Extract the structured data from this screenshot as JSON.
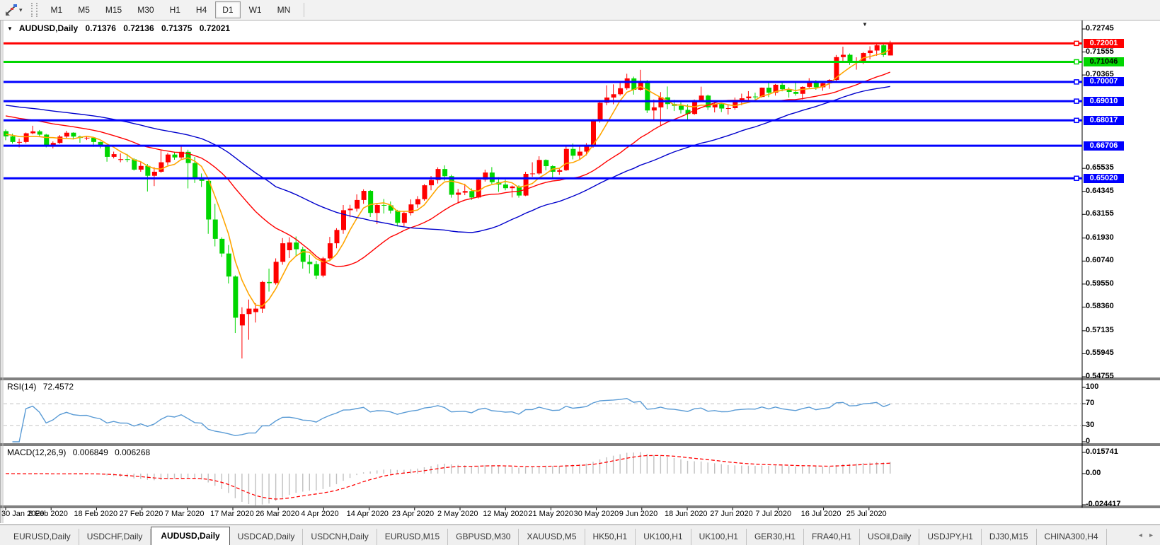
{
  "toolbar": {
    "timeframes": [
      "M1",
      "M5",
      "M15",
      "M30",
      "H1",
      "H4",
      "D1",
      "W1",
      "MN"
    ],
    "active_timeframe": "D1"
  },
  "icons": {
    "caret_down": "▾",
    "collapse_triangle": "▼",
    "shift_triangle": "▼",
    "tab_prev": "◂",
    "tab_next": "▸"
  },
  "header": {
    "symbol": "AUDUSD,Daily",
    "open": "0.71376",
    "high": "0.72136",
    "low": "0.71375",
    "close": "0.72021"
  },
  "chart_data": {
    "type": "candlestick",
    "symbol": "AUDUSD",
    "timeframe": "Daily",
    "colors": {
      "bull": "#ff0000",
      "bear": "#00d600",
      "ma_fast": "#ffa500",
      "ma_med": "#ff0000",
      "ma_slow": "#0000cc",
      "rsi_line": "#5a9bd5",
      "macd_hist": "#c0c0c0",
      "macd_signal": "#ff0000"
    },
    "price_axis": {
      "top": 0.72745,
      "bottom": 0.54755,
      "visible_ticks": [
        0.72745,
        0.71555,
        0.70365,
        0.65535,
        0.64345,
        0.63155,
        0.6193,
        0.6074,
        0.5955,
        0.5836,
        0.57135,
        0.55945,
        0.54755
      ]
    },
    "hlines": [
      {
        "price": 0.72001,
        "label": "0.72001",
        "color": "#ff0000",
        "text_color": "#ffffff",
        "marker": true
      },
      {
        "price": 0.71046,
        "label": "0.71046",
        "color": "#00d600",
        "text_color": "#000000",
        "marker": true
      },
      {
        "price": 0.70007,
        "label": "0.70007",
        "color": "#0000ff",
        "text_color": "#ffffff",
        "marker": true
      },
      {
        "price": 0.6901,
        "label": "0.69010",
        "color": "#0000ff",
        "text_color": "#ffffff",
        "marker": true
      },
      {
        "price": 0.68017,
        "label": "0.68017",
        "color": "#0000ff",
        "text_color": "#ffffff",
        "marker": true
      },
      {
        "price": 0.66706,
        "label": "0.66706",
        "color": "#0000ff",
        "text_color": "#ffffff",
        "marker": false
      },
      {
        "price": 0.6502,
        "label": "0.65020",
        "color": "#0000ff",
        "text_color": "#ffffff",
        "marker": true
      }
    ],
    "date_labels": [
      "30 Jan 2020",
      "8 Feb 2020",
      "18 Feb 2020",
      "27 Feb 2020",
      "7 Mar 2020",
      "17 Mar 2020",
      "26 Mar 2020",
      "4 Apr 2020",
      "14 Apr 2020",
      "23 Apr 2020",
      "2 May 2020",
      "12 May 2020",
      "21 May 2020",
      "30 May 2020",
      "9 Jun 2020",
      "18 Jun 2020",
      "27 Jun 2020",
      "7 Jul 2020",
      "16 Jul 2020",
      "25 Jul 2020"
    ],
    "candles": [
      [
        0.6746,
        0.6755,
        0.6699,
        0.6719
      ],
      [
        0.6719,
        0.6733,
        0.6682,
        0.669
      ],
      [
        0.6687,
        0.6707,
        0.6662,
        0.669
      ],
      [
        0.669,
        0.6739,
        0.6683,
        0.6735
      ],
      [
        0.6735,
        0.6774,
        0.673,
        0.6745
      ],
      [
        0.6745,
        0.6752,
        0.6717,
        0.6728
      ],
      [
        0.6728,
        0.6732,
        0.6662,
        0.667
      ],
      [
        0.6668,
        0.6693,
        0.6657,
        0.6685
      ],
      [
        0.6685,
        0.6726,
        0.668,
        0.6718
      ],
      [
        0.6718,
        0.6748,
        0.6711,
        0.6738
      ],
      [
        0.6738,
        0.674,
        0.6703,
        0.6718
      ],
      [
        0.6718,
        0.6723,
        0.6686,
        0.6711
      ],
      [
        0.6711,
        0.6721,
        0.67,
        0.6712
      ],
      [
        0.6712,
        0.6714,
        0.6665,
        0.669
      ],
      [
        0.669,
        0.6692,
        0.6657,
        0.6673
      ],
      [
        0.6673,
        0.6677,
        0.6588,
        0.6613
      ],
      [
        0.6613,
        0.664,
        0.6605,
        0.6627
      ],
      [
        0.6597,
        0.6631,
        0.6585,
        0.6601
      ],
      [
        0.6601,
        0.6628,
        0.6586,
        0.66
      ],
      [
        0.66,
        0.6606,
        0.6542,
        0.6547
      ],
      [
        0.6547,
        0.6589,
        0.6536,
        0.6566
      ],
      [
        0.6566,
        0.6576,
        0.6434,
        0.6515
      ],
      [
        0.6515,
        0.656,
        0.6462,
        0.6536
      ],
      [
        0.6536,
        0.6646,
        0.653,
        0.6585
      ],
      [
        0.6585,
        0.6633,
        0.657,
        0.6625
      ],
      [
        0.6625,
        0.6639,
        0.6598,
        0.661
      ],
      [
        0.661,
        0.6668,
        0.6602,
        0.6639
      ],
      [
        0.6639,
        0.665,
        0.645,
        0.6581
      ],
      [
        0.6581,
        0.6613,
        0.6478,
        0.65
      ],
      [
        0.65,
        0.6527,
        0.6457,
        0.6489
      ],
      [
        0.6489,
        0.649,
        0.6215,
        0.6289
      ],
      [
        0.6289,
        0.637,
        0.615,
        0.6189
      ],
      [
        0.6189,
        0.6197,
        0.6095,
        0.6113
      ],
      [
        0.6113,
        0.6157,
        0.5958,
        0.5994
      ],
      [
        0.5994,
        0.6,
        0.5702,
        0.5781
      ],
      [
        0.5741,
        0.5835,
        0.557,
        0.58
      ],
      [
        0.58,
        0.5875,
        0.5667,
        0.5828
      ],
      [
        0.581,
        0.5856,
        0.5756,
        0.5828
      ],
      [
        0.5828,
        0.5972,
        0.5805,
        0.5966
      ],
      [
        0.5966,
        0.6035,
        0.5916,
        0.596
      ],
      [
        0.596,
        0.6088,
        0.5952,
        0.607
      ],
      [
        0.607,
        0.6193,
        0.6055,
        0.6166
      ],
      [
        0.613,
        0.6197,
        0.609,
        0.617
      ],
      [
        0.617,
        0.6201,
        0.61,
        0.6135
      ],
      [
        0.6135,
        0.6148,
        0.6035,
        0.607
      ],
      [
        0.607,
        0.6105,
        0.601,
        0.6058
      ],
      [
        0.6058,
        0.6075,
        0.598,
        0.5999
      ],
      [
        0.5999,
        0.6096,
        0.599,
        0.6088
      ],
      [
        0.6088,
        0.6199,
        0.608,
        0.6166
      ],
      [
        0.6166,
        0.6244,
        0.614,
        0.6235
      ],
      [
        0.6235,
        0.6364,
        0.6215,
        0.6337
      ],
      [
        0.6337,
        0.6365,
        0.63,
        0.6345
      ],
      [
        0.6345,
        0.6419,
        0.633,
        0.639
      ],
      [
        0.639,
        0.6445,
        0.637,
        0.6437
      ],
      [
        0.6437,
        0.6441,
        0.6302,
        0.6323
      ],
      [
        0.6323,
        0.637,
        0.6265,
        0.6364
      ],
      [
        0.6364,
        0.6395,
        0.632,
        0.6362
      ],
      [
        0.6362,
        0.6382,
        0.632,
        0.6335
      ],
      [
        0.6335,
        0.6339,
        0.6253,
        0.6272
      ],
      [
        0.6272,
        0.633,
        0.6254,
        0.6323
      ],
      [
        0.6323,
        0.6393,
        0.631,
        0.6367
      ],
      [
        0.6367,
        0.641,
        0.635,
        0.6394
      ],
      [
        0.6394,
        0.6472,
        0.6386,
        0.6466
      ],
      [
        0.6466,
        0.6514,
        0.644,
        0.6493
      ],
      [
        0.6493,
        0.6559,
        0.6475,
        0.655
      ],
      [
        0.655,
        0.6569,
        0.649,
        0.6513
      ],
      [
        0.6513,
        0.6521,
        0.6402,
        0.6417
      ],
      [
        0.6417,
        0.6447,
        0.6372,
        0.6428
      ],
      [
        0.6428,
        0.6474,
        0.6415,
        0.6436
      ],
      [
        0.6436,
        0.645,
        0.639,
        0.6403
      ],
      [
        0.6403,
        0.6503,
        0.6398,
        0.6495
      ],
      [
        0.6495,
        0.6547,
        0.6485,
        0.6532
      ],
      [
        0.6532,
        0.656,
        0.6473,
        0.6482
      ],
      [
        0.6482,
        0.6508,
        0.6432,
        0.647
      ],
      [
        0.647,
        0.6495,
        0.644,
        0.6451
      ],
      [
        0.6451,
        0.6465,
        0.6403,
        0.646
      ],
      [
        0.646,
        0.6466,
        0.6402,
        0.6413
      ],
      [
        0.6413,
        0.6536,
        0.641,
        0.6525
      ],
      [
        0.6525,
        0.6585,
        0.651,
        0.6527
      ],
      [
        0.6527,
        0.6616,
        0.652,
        0.6597
      ],
      [
        0.6597,
        0.66,
        0.6543,
        0.6565
      ],
      [
        0.6565,
        0.657,
        0.6506,
        0.6536
      ],
      [
        0.6536,
        0.6554,
        0.652,
        0.6544
      ],
      [
        0.6544,
        0.6675,
        0.654,
        0.6654
      ],
      [
        0.6654,
        0.6682,
        0.66,
        0.6619
      ],
      [
        0.6619,
        0.6666,
        0.66,
        0.664
      ],
      [
        0.664,
        0.6684,
        0.662,
        0.6667
      ],
      [
        0.6667,
        0.6808,
        0.666,
        0.6798
      ],
      [
        0.6798,
        0.69,
        0.679,
        0.6893
      ],
      [
        0.6893,
        0.6983,
        0.688,
        0.692
      ],
      [
        0.692,
        0.6988,
        0.6885,
        0.6937
      ],
      [
        0.6937,
        0.7,
        0.693,
        0.6968
      ],
      [
        0.6968,
        0.7043,
        0.696,
        0.7019
      ],
      [
        0.7019,
        0.7028,
        0.6935,
        0.696
      ],
      [
        0.696,
        0.7063,
        0.6955,
        0.7
      ],
      [
        0.7,
        0.701,
        0.684,
        0.6853
      ],
      [
        0.6853,
        0.691,
        0.68,
        0.6869
      ],
      [
        0.6869,
        0.6948,
        0.6776,
        0.6921
      ],
      [
        0.6921,
        0.6977,
        0.686,
        0.6886
      ],
      [
        0.6886,
        0.6908,
        0.685,
        0.6877
      ],
      [
        0.6877,
        0.6895,
        0.6837,
        0.6856
      ],
      [
        0.6856,
        0.6885,
        0.6805,
        0.6835
      ],
      [
        0.6835,
        0.691,
        0.683,
        0.6906
      ],
      [
        0.6906,
        0.6976,
        0.69,
        0.693
      ],
      [
        0.693,
        0.6935,
        0.6856,
        0.6869
      ],
      [
        0.6869,
        0.6896,
        0.6843,
        0.6886
      ],
      [
        0.6886,
        0.689,
        0.6845,
        0.6863
      ],
      [
        0.6863,
        0.6885,
        0.6832,
        0.6865
      ],
      [
        0.6865,
        0.692,
        0.6857,
        0.6902
      ],
      [
        0.6902,
        0.694,
        0.688,
        0.6916
      ],
      [
        0.6916,
        0.6953,
        0.69,
        0.6925
      ],
      [
        0.6925,
        0.6945,
        0.691,
        0.6923
      ],
      [
        0.6923,
        0.6972,
        0.692,
        0.6971
      ],
      [
        0.6971,
        0.6998,
        0.6922,
        0.6945
      ],
      [
        0.6945,
        0.699,
        0.693,
        0.6986
      ],
      [
        0.6986,
        0.7,
        0.6952,
        0.6963
      ],
      [
        0.6963,
        0.6973,
        0.692,
        0.6949
      ],
      [
        0.6949,
        0.7,
        0.693,
        0.6939
      ],
      [
        0.6939,
        0.6978,
        0.691,
        0.6975
      ],
      [
        0.6975,
        0.702,
        0.697,
        0.7004
      ],
      [
        0.7004,
        0.701,
        0.696,
        0.6973
      ],
      [
        0.6973,
        0.7,
        0.6955,
        0.6994
      ],
      [
        0.6994,
        0.7015,
        0.6965,
        0.7011
      ],
      [
        0.7011,
        0.714,
        0.7005,
        0.7129
      ],
      [
        0.7129,
        0.7183,
        0.7108,
        0.7141
      ],
      [
        0.7141,
        0.7148,
        0.7089,
        0.7099
      ],
      [
        0.7099,
        0.7128,
        0.7064,
        0.7105
      ],
      [
        0.7105,
        0.7155,
        0.7093,
        0.715
      ],
      [
        0.715,
        0.7185,
        0.7118,
        0.7163
      ],
      [
        0.7163,
        0.7197,
        0.7136,
        0.719
      ],
      [
        0.719,
        0.7203,
        0.713,
        0.714
      ],
      [
        0.71376,
        0.72136,
        0.71375,
        0.72021
      ]
    ],
    "ma_lines": [
      {
        "name": "fast",
        "period": 5,
        "color": "#ffa500",
        "start": 0.673
      },
      {
        "name": "medium",
        "period": 20,
        "color": "#ff0000",
        "start": 0.6825
      },
      {
        "name": "slow",
        "period": 40,
        "color": "#0000cc",
        "start": 0.688
      }
    ],
    "rsi": {
      "label": "RSI(14)",
      "value": "72.4572",
      "period": 14,
      "levels": [
        100,
        70,
        30,
        0
      ],
      "dashed_levels": [
        70,
        30
      ]
    },
    "macd": {
      "label": "MACD(12,26,9)",
      "value_main": "0.006849",
      "value_signal": "0.006268",
      "fast": 12,
      "slow": 26,
      "signal": 9,
      "axis_max": "0.015741",
      "axis_zero": "0.00",
      "axis_min": "-0.024417"
    }
  },
  "tabs": {
    "active": "AUDUSD,Daily",
    "active_index": 2,
    "items": [
      "EURUSD,Daily",
      "USDCHF,Daily",
      "AUDUSD,Daily",
      "USDCAD,Daily",
      "USDCNH,Daily",
      "EURUSD,M15",
      "GBPUSD,M30",
      "XAUUSD,M5",
      "HK50,H1",
      "UK100,H1",
      "UK100,H1",
      "GER30,H1",
      "FRA40,H1",
      "USOil,Daily",
      "USDJPY,H1",
      "DJ30,M15",
      "CHINA300,H4"
    ]
  }
}
